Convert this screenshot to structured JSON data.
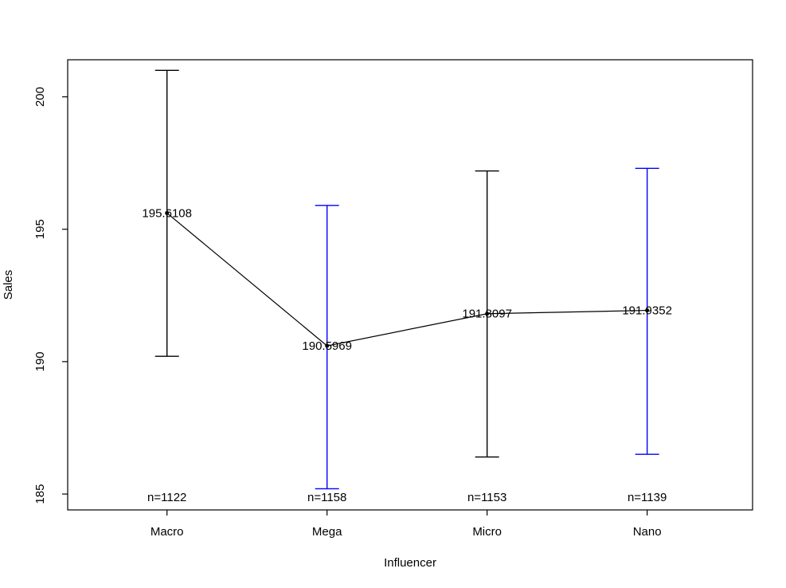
{
  "chart_data": {
    "type": "line",
    "title": "",
    "xlabel": "Influencer",
    "ylabel": "Sales",
    "categories": [
      "Macro",
      "Mega",
      "Micro",
      "Nano"
    ],
    "series": [
      {
        "name": "mean Sales with 95% CI",
        "means": [
          195.6108,
          190.5969,
          191.8097,
          191.9352
        ],
        "mean_labels": [
          "195.6108",
          "190.5969",
          "191.8097",
          "191.9352"
        ],
        "ci_low": [
          190.2,
          185.2,
          186.4,
          186.5
        ],
        "ci_high": [
          201.0,
          195.9,
          197.2,
          197.3
        ],
        "n_labels": [
          "n=1122",
          "n=1158",
          "n=1153",
          "n=1139"
        ]
      }
    ],
    "bar_colors": [
      "#000000",
      "#0000ff",
      "#000000",
      "#0000ff"
    ],
    "line_color": "#000000",
    "point_color": "#000000",
    "text_color": "#000000",
    "ylim": [
      184.4,
      201.4
    ],
    "yticks": [
      "185",
      "190",
      "195",
      "200"
    ],
    "grid": false,
    "legend": "none"
  }
}
